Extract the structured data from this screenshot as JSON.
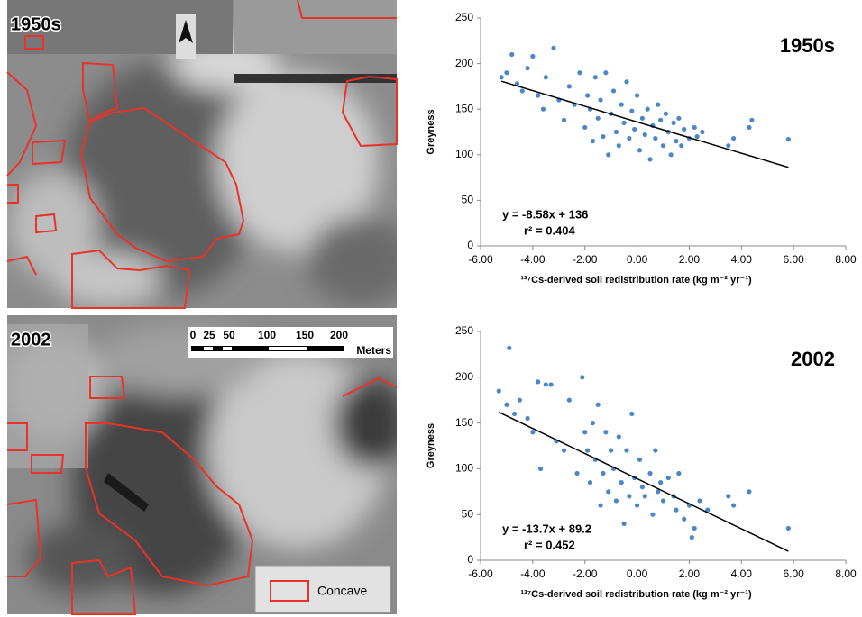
{
  "images": [
    {
      "label": "1950s"
    },
    {
      "label": "2002"
    }
  ],
  "scale_bar": {
    "labels": [
      "0",
      "25",
      "50",
      "100",
      "150",
      "200"
    ],
    "unit": "Meters"
  },
  "legend": {
    "label": "Concave",
    "color": "#e8332b"
  },
  "chart_data": [
    {
      "type": "scatter",
      "title": "1950s",
      "ylabel": "Greyness",
      "xlabel": "¹³⁷Cs-derived soil redistribution rate (kg m⁻² yr⁻¹)",
      "equation": "y = -8.58x + 136",
      "r2": "r² = 0.404",
      "trendline": {
        "slope": -8.58,
        "intercept": 136,
        "color": "#000000"
      },
      "color": "#4a86c8",
      "x": [
        -5.2,
        -5.0,
        -4.8,
        -4.6,
        -4.4,
        -4.2,
        -4.0,
        -3.8,
        -3.6,
        -3.5,
        -3.2,
        -3.0,
        -2.8,
        -2.6,
        -2.4,
        -2.2,
        -2.0,
        -1.9,
        -1.8,
        -1.7,
        -1.6,
        -1.5,
        -1.4,
        -1.3,
        -1.2,
        -1.1,
        -1.0,
        -0.9,
        -0.8,
        -0.7,
        -0.6,
        -0.5,
        -0.4,
        -0.3,
        -0.2,
        -0.1,
        0.0,
        0.1,
        0.2,
        0.3,
        0.4,
        0.5,
        0.6,
        0.7,
        0.8,
        0.9,
        1.0,
        1.1,
        1.2,
        1.3,
        1.4,
        1.5,
        1.6,
        1.7,
        1.8,
        2.0,
        2.2,
        2.3,
        2.5,
        3.5,
        3.7,
        4.3,
        4.4,
        5.8
      ],
      "values": [
        185,
        190,
        210,
        178,
        170,
        195,
        208,
        165,
        150,
        185,
        217,
        160,
        138,
        175,
        155,
        190,
        130,
        165,
        150,
        115,
        185,
        140,
        160,
        120,
        190,
        100,
        145,
        170,
        125,
        110,
        155,
        135,
        180,
        118,
        148,
        128,
        165,
        105,
        140,
        122,
        150,
        95,
        132,
        118,
        155,
        138,
        110,
        145,
        125,
        100,
        135,
        115,
        140,
        110,
        128,
        118,
        130,
        120,
        125,
        110,
        118,
        130,
        138,
        117
      ],
      "xlim": [
        -6,
        8
      ],
      "xticks": [
        {
          "value": -6,
          "label": "-6.00"
        },
        {
          "value": -4,
          "label": "-4.00"
        },
        {
          "value": -2,
          "label": "-2.00"
        },
        {
          "value": 0,
          "label": "0.00"
        },
        {
          "value": 2,
          "label": "2.00"
        },
        {
          "value": 4,
          "label": "4.00"
        },
        {
          "value": 6,
          "label": "6.00"
        },
        {
          "value": 8,
          "label": "8.00"
        }
      ],
      "ylim": [
        0,
        250
      ],
      "yticks": [
        0,
        50,
        100,
        150,
        200,
        250
      ]
    },
    {
      "type": "scatter",
      "title": "2002",
      "ylabel": "Greyness",
      "xlabel": "¹³⁷Cs-derived soil redistribution rate (kg m⁻² yr⁻¹)",
      "equation": "y = -13.7x + 89.2",
      "r2": "r² = 0.452",
      "trendline": {
        "slope": -13.7,
        "intercept": 89.2,
        "color": "#000000"
      },
      "color": "#4a86c8",
      "x": [
        -5.3,
        -5.0,
        -4.9,
        -4.7,
        -4.5,
        -4.2,
        -4.0,
        -3.8,
        -3.7,
        -3.5,
        -3.3,
        -3.1,
        -2.8,
        -2.6,
        -2.3,
        -2.1,
        -2.0,
        -1.9,
        -1.8,
        -1.7,
        -1.6,
        -1.5,
        -1.4,
        -1.3,
        -1.2,
        -1.1,
        -1.0,
        -0.9,
        -0.8,
        -0.7,
        -0.6,
        -0.5,
        -0.4,
        -0.3,
        -0.2,
        -0.1,
        0.0,
        0.1,
        0.2,
        0.3,
        0.5,
        0.6,
        0.7,
        0.8,
        0.9,
        1.0,
        1.2,
        1.4,
        1.5,
        1.6,
        1.8,
        2.0,
        2.1,
        2.2,
        2.4,
        2.7,
        3.5,
        3.7,
        4.3,
        5.8
      ],
      "values": [
        185,
        170,
        232,
        160,
        175,
        155,
        140,
        195,
        100,
        192,
        192,
        130,
        120,
        175,
        95,
        200,
        140,
        120,
        85,
        150,
        110,
        170,
        60,
        95,
        140,
        75,
        120,
        100,
        65,
        135,
        85,
        40,
        120,
        70,
        160,
        90,
        60,
        110,
        80,
        70,
        95,
        50,
        120,
        75,
        85,
        65,
        90,
        70,
        55,
        95,
        45,
        60,
        25,
        35,
        65,
        55,
        70,
        60,
        75,
        35
      ],
      "xlim": [
        -6,
        8
      ],
      "xticks": [
        {
          "value": -6,
          "label": "-6.00"
        },
        {
          "value": -4,
          "label": "-4.00"
        },
        {
          "value": -2,
          "label": "-2.00"
        },
        {
          "value": 0,
          "label": "0.00"
        },
        {
          "value": 2,
          "label": "2.00"
        },
        {
          "value": 4,
          "label": "4.00"
        },
        {
          "value": 6,
          "label": "6.00"
        },
        {
          "value": 8,
          "label": "8.00"
        }
      ],
      "ylim": [
        0,
        250
      ],
      "yticks": [
        0,
        50,
        100,
        150,
        200,
        250
      ]
    }
  ]
}
